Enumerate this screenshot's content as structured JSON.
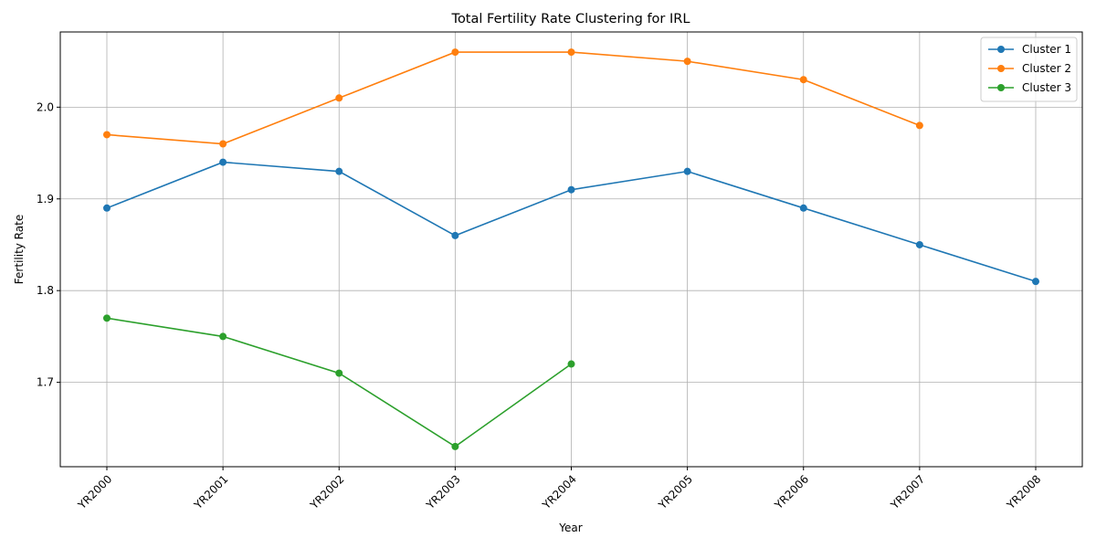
{
  "chart_data": {
    "type": "line",
    "title": "Total Fertility Rate Clustering for IRL",
    "xlabel": "Year",
    "ylabel": "Fertility Rate",
    "categories": [
      "YR2000",
      "YR2001",
      "YR2002",
      "YR2003",
      "YR2004",
      "YR2005",
      "YR2006",
      "YR2007",
      "YR2008"
    ],
    "ylim": [
      1.608,
      2.082
    ],
    "yticks": [
      1.7,
      1.8,
      1.9,
      2.0
    ],
    "grid": true,
    "legend_position": "top-right",
    "series": [
      {
        "name": "Cluster 1",
        "color": "#1f77b4",
        "values": [
          1.89,
          1.94,
          1.93,
          1.86,
          1.91,
          1.93,
          1.89,
          1.85,
          1.81
        ]
      },
      {
        "name": "Cluster 2",
        "color": "#ff7f0e",
        "values": [
          1.97,
          1.96,
          2.01,
          2.06,
          2.06,
          2.05,
          2.03,
          1.98,
          null
        ]
      },
      {
        "name": "Cluster 3",
        "color": "#2ca02c",
        "values": [
          1.77,
          1.75,
          1.71,
          1.63,
          1.72,
          null,
          null,
          null,
          null
        ]
      }
    ]
  }
}
